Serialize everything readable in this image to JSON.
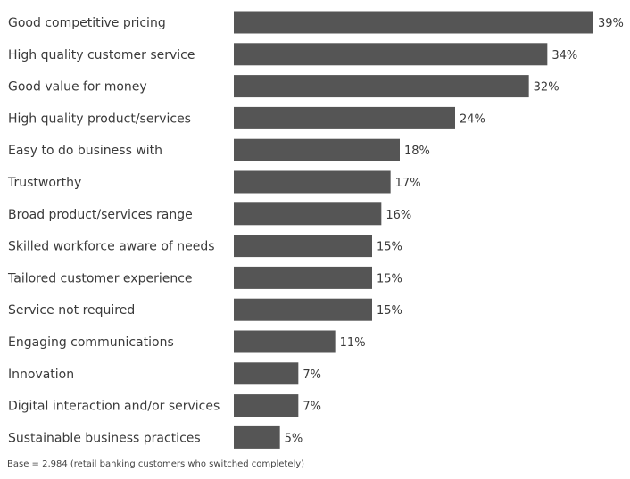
{
  "chart_data": {
    "type": "bar",
    "orientation": "horizontal",
    "categories": [
      "Good competitive pricing",
      "High quality customer service",
      "Good value for money",
      "High quality product/services",
      "Easy to do business with",
      "Trustworthy",
      "Broad product/services range",
      "Skilled workforce aware of needs",
      "Tailored customer experience",
      "Service not required",
      "Engaging communications",
      "Innovation",
      "Digital interaction and/or services",
      "Sustainable business practices"
    ],
    "values": [
      39,
      34,
      32,
      24,
      18,
      17,
      16,
      15,
      15,
      15,
      11,
      7,
      7,
      5
    ],
    "value_labels": [
      "39%",
      "34%",
      "32%",
      "24%",
      "18%",
      "17%",
      "16%",
      "15%",
      "15%",
      "15%",
      "11%",
      "7%",
      "7%",
      "5%"
    ],
    "unit": "%",
    "xlim": [
      0,
      39
    ],
    "bar_color": "#555555",
    "grid": false,
    "legend": "none"
  },
  "footnote": "Base = 2,984 (retail banking customers who switched completely)"
}
